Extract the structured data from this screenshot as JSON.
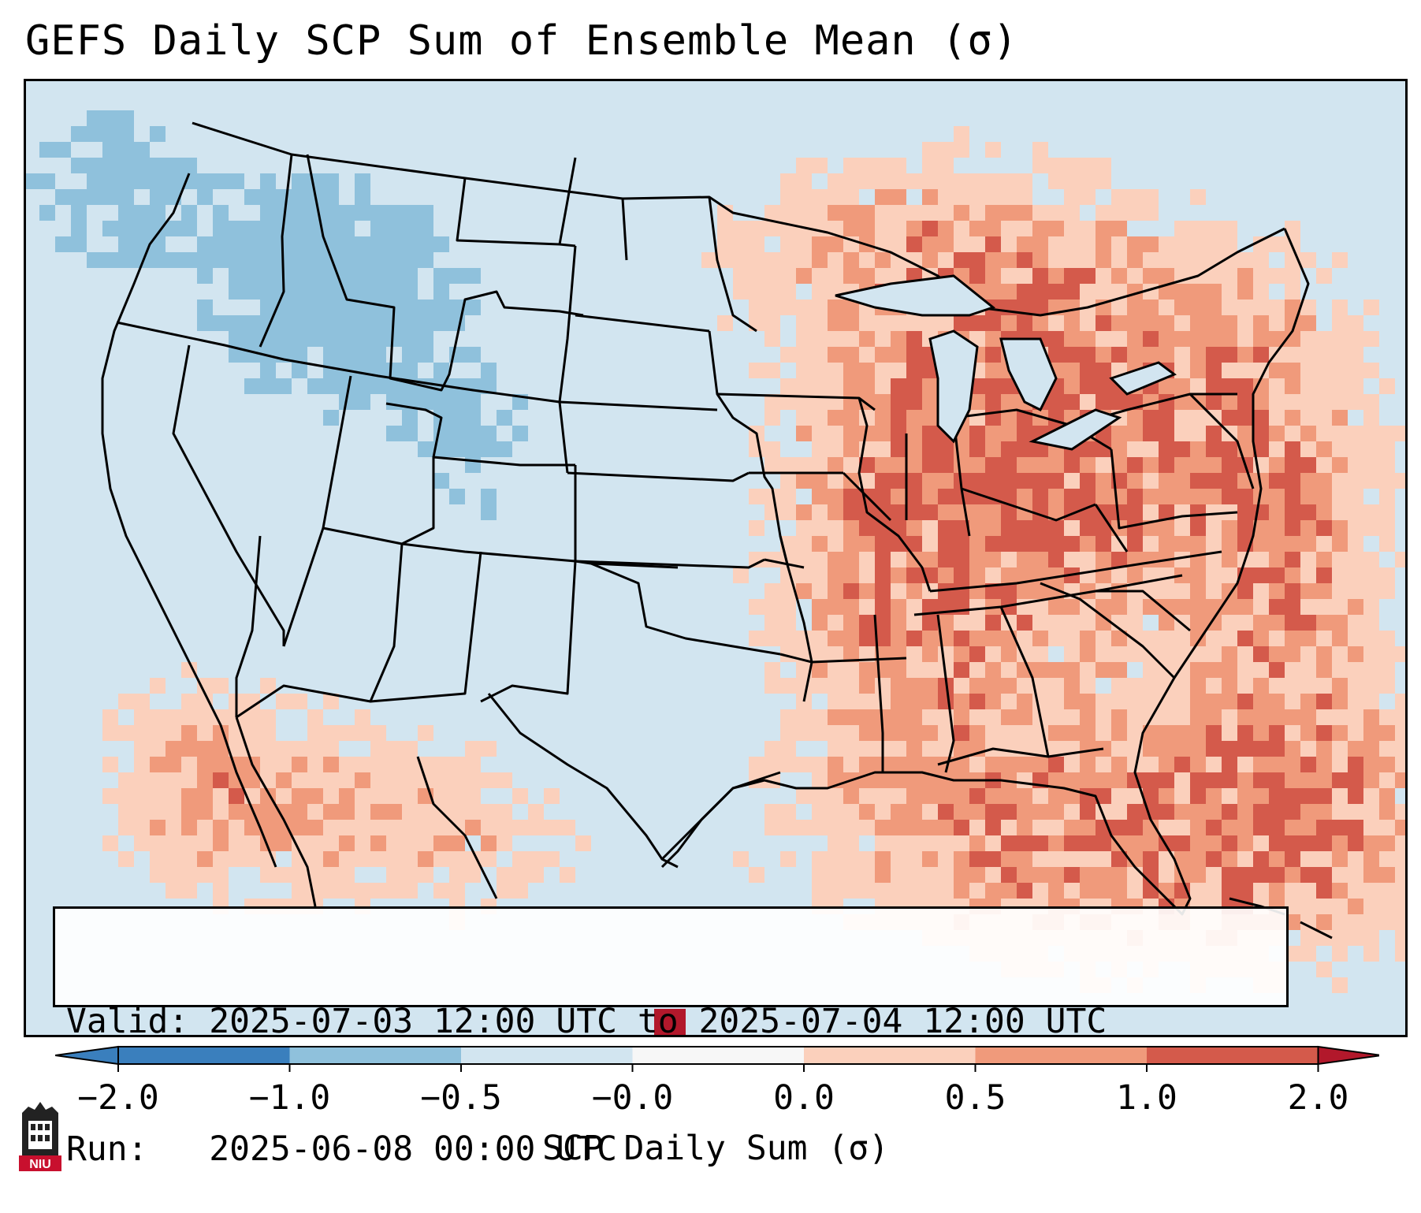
{
  "title": "GEFS Daily SCP Sum of Ensemble Mean (σ)",
  "valid_line": "Valid: 2025-07-03 12:00 UTC to 2025-07-04 12:00 UTC",
  "run_line": "Run:   2025-06-08 00:00 UTC",
  "colorbar": {
    "label": "SCP Daily Sum (σ)",
    "ticks": [
      "−2.0",
      "−1.0",
      "−0.5",
      "−0.0",
      "0.0",
      "0.5",
      "1.0",
      "2.0"
    ],
    "colors": [
      "#3a7fbd",
      "#8fc1dc",
      "#d2e5f0",
      "#f7f7f7",
      "#fbd0bc",
      "#f09a7b",
      "#d45a4b",
      "#b2182b"
    ]
  },
  "logo_text": "NIU",
  "map": {
    "region": "Continental United States",
    "palette": {
      "ocean": "#d2e5f0",
      "neutral": "#d2e5f0",
      "light_pos": "#fbd0bc",
      "mid_pos": "#f09a7b",
      "strong_pos": "#d45a4b",
      "extreme_pos": "#b2182b",
      "light_neg": "#8fc1dc",
      "borders": "#000000"
    }
  }
}
